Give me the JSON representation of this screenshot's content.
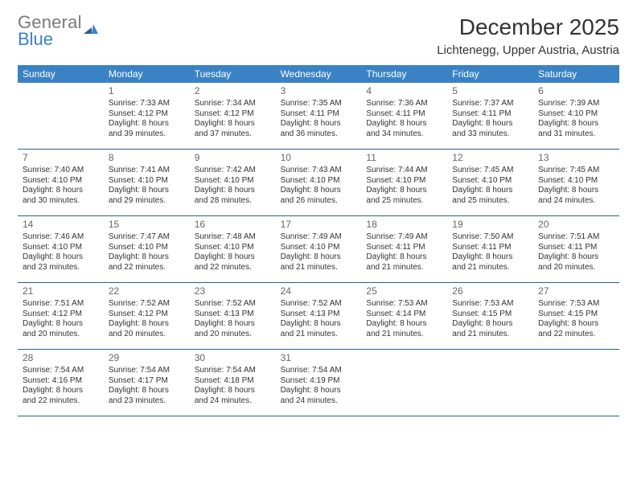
{
  "logo": {
    "text_general": "General",
    "text_blue": "Blue"
  },
  "title": {
    "month": "December 2025",
    "location": "Lichtenegg, Upper Austria, Austria"
  },
  "calendar": {
    "type": "table",
    "header_bg": "#3a82c4",
    "header_text_color": "#ffffff",
    "row_separator_color": "#2c5f8d",
    "text_color": "#333333",
    "daynum_color": "#666666",
    "cell_font_size_pt": 7.5,
    "daynum_font_size_pt": 9,
    "weekdays": [
      "Sunday",
      "Monday",
      "Tuesday",
      "Wednesday",
      "Thursday",
      "Friday",
      "Saturday"
    ],
    "weeks": [
      [
        null,
        {
          "n": "1",
          "sunrise": "Sunrise: 7:33 AM",
          "sunset": "Sunset: 4:12 PM",
          "d1": "Daylight: 8 hours",
          "d2": "and 39 minutes."
        },
        {
          "n": "2",
          "sunrise": "Sunrise: 7:34 AM",
          "sunset": "Sunset: 4:12 PM",
          "d1": "Daylight: 8 hours",
          "d2": "and 37 minutes."
        },
        {
          "n": "3",
          "sunrise": "Sunrise: 7:35 AM",
          "sunset": "Sunset: 4:11 PM",
          "d1": "Daylight: 8 hours",
          "d2": "and 36 minutes."
        },
        {
          "n": "4",
          "sunrise": "Sunrise: 7:36 AM",
          "sunset": "Sunset: 4:11 PM",
          "d1": "Daylight: 8 hours",
          "d2": "and 34 minutes."
        },
        {
          "n": "5",
          "sunrise": "Sunrise: 7:37 AM",
          "sunset": "Sunset: 4:11 PM",
          "d1": "Daylight: 8 hours",
          "d2": "and 33 minutes."
        },
        {
          "n": "6",
          "sunrise": "Sunrise: 7:39 AM",
          "sunset": "Sunset: 4:10 PM",
          "d1": "Daylight: 8 hours",
          "d2": "and 31 minutes."
        }
      ],
      [
        {
          "n": "7",
          "sunrise": "Sunrise: 7:40 AM",
          "sunset": "Sunset: 4:10 PM",
          "d1": "Daylight: 8 hours",
          "d2": "and 30 minutes."
        },
        {
          "n": "8",
          "sunrise": "Sunrise: 7:41 AM",
          "sunset": "Sunset: 4:10 PM",
          "d1": "Daylight: 8 hours",
          "d2": "and 29 minutes."
        },
        {
          "n": "9",
          "sunrise": "Sunrise: 7:42 AM",
          "sunset": "Sunset: 4:10 PM",
          "d1": "Daylight: 8 hours",
          "d2": "and 28 minutes."
        },
        {
          "n": "10",
          "sunrise": "Sunrise: 7:43 AM",
          "sunset": "Sunset: 4:10 PM",
          "d1": "Daylight: 8 hours",
          "d2": "and 26 minutes."
        },
        {
          "n": "11",
          "sunrise": "Sunrise: 7:44 AM",
          "sunset": "Sunset: 4:10 PM",
          "d1": "Daylight: 8 hours",
          "d2": "and 25 minutes."
        },
        {
          "n": "12",
          "sunrise": "Sunrise: 7:45 AM",
          "sunset": "Sunset: 4:10 PM",
          "d1": "Daylight: 8 hours",
          "d2": "and 25 minutes."
        },
        {
          "n": "13",
          "sunrise": "Sunrise: 7:45 AM",
          "sunset": "Sunset: 4:10 PM",
          "d1": "Daylight: 8 hours",
          "d2": "and 24 minutes."
        }
      ],
      [
        {
          "n": "14",
          "sunrise": "Sunrise: 7:46 AM",
          "sunset": "Sunset: 4:10 PM",
          "d1": "Daylight: 8 hours",
          "d2": "and 23 minutes."
        },
        {
          "n": "15",
          "sunrise": "Sunrise: 7:47 AM",
          "sunset": "Sunset: 4:10 PM",
          "d1": "Daylight: 8 hours",
          "d2": "and 22 minutes."
        },
        {
          "n": "16",
          "sunrise": "Sunrise: 7:48 AM",
          "sunset": "Sunset: 4:10 PM",
          "d1": "Daylight: 8 hours",
          "d2": "and 22 minutes."
        },
        {
          "n": "17",
          "sunrise": "Sunrise: 7:49 AM",
          "sunset": "Sunset: 4:10 PM",
          "d1": "Daylight: 8 hours",
          "d2": "and 21 minutes."
        },
        {
          "n": "18",
          "sunrise": "Sunrise: 7:49 AM",
          "sunset": "Sunset: 4:11 PM",
          "d1": "Daylight: 8 hours",
          "d2": "and 21 minutes."
        },
        {
          "n": "19",
          "sunrise": "Sunrise: 7:50 AM",
          "sunset": "Sunset: 4:11 PM",
          "d1": "Daylight: 8 hours",
          "d2": "and 21 minutes."
        },
        {
          "n": "20",
          "sunrise": "Sunrise: 7:51 AM",
          "sunset": "Sunset: 4:11 PM",
          "d1": "Daylight: 8 hours",
          "d2": "and 20 minutes."
        }
      ],
      [
        {
          "n": "21",
          "sunrise": "Sunrise: 7:51 AM",
          "sunset": "Sunset: 4:12 PM",
          "d1": "Daylight: 8 hours",
          "d2": "and 20 minutes."
        },
        {
          "n": "22",
          "sunrise": "Sunrise: 7:52 AM",
          "sunset": "Sunset: 4:12 PM",
          "d1": "Daylight: 8 hours",
          "d2": "and 20 minutes."
        },
        {
          "n": "23",
          "sunrise": "Sunrise: 7:52 AM",
          "sunset": "Sunset: 4:13 PM",
          "d1": "Daylight: 8 hours",
          "d2": "and 20 minutes."
        },
        {
          "n": "24",
          "sunrise": "Sunrise: 7:52 AM",
          "sunset": "Sunset: 4:13 PM",
          "d1": "Daylight: 8 hours",
          "d2": "and 21 minutes."
        },
        {
          "n": "25",
          "sunrise": "Sunrise: 7:53 AM",
          "sunset": "Sunset: 4:14 PM",
          "d1": "Daylight: 8 hours",
          "d2": "and 21 minutes."
        },
        {
          "n": "26",
          "sunrise": "Sunrise: 7:53 AM",
          "sunset": "Sunset: 4:15 PM",
          "d1": "Daylight: 8 hours",
          "d2": "and 21 minutes."
        },
        {
          "n": "27",
          "sunrise": "Sunrise: 7:53 AM",
          "sunset": "Sunset: 4:15 PM",
          "d1": "Daylight: 8 hours",
          "d2": "and 22 minutes."
        }
      ],
      [
        {
          "n": "28",
          "sunrise": "Sunrise: 7:54 AM",
          "sunset": "Sunset: 4:16 PM",
          "d1": "Daylight: 8 hours",
          "d2": "and 22 minutes."
        },
        {
          "n": "29",
          "sunrise": "Sunrise: 7:54 AM",
          "sunset": "Sunset: 4:17 PM",
          "d1": "Daylight: 8 hours",
          "d2": "and 23 minutes."
        },
        {
          "n": "30",
          "sunrise": "Sunrise: 7:54 AM",
          "sunset": "Sunset: 4:18 PM",
          "d1": "Daylight: 8 hours",
          "d2": "and 24 minutes."
        },
        {
          "n": "31",
          "sunrise": "Sunrise: 7:54 AM",
          "sunset": "Sunset: 4:19 PM",
          "d1": "Daylight: 8 hours",
          "d2": "and 24 minutes."
        },
        null,
        null,
        null
      ]
    ]
  }
}
